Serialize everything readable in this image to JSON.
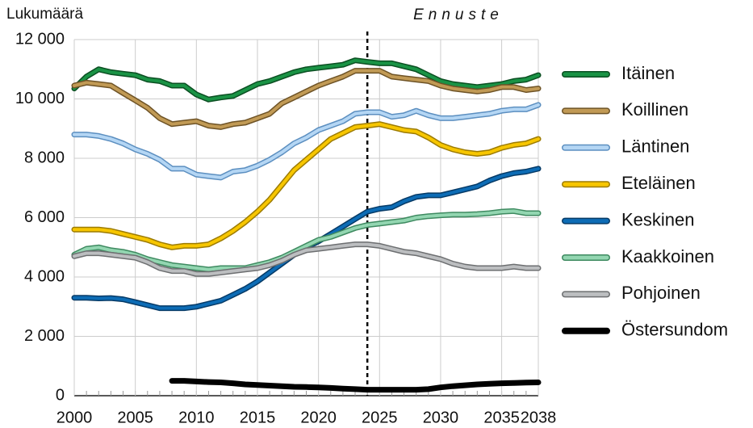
{
  "chart_data": {
    "type": "line",
    "y_label": "Lukumäärä",
    "forecast_label": "Ennuste",
    "forecast_start": 2024,
    "x": [
      2000,
      2001,
      2002,
      2003,
      2004,
      2005,
      2006,
      2007,
      2008,
      2009,
      2010,
      2011,
      2012,
      2013,
      2014,
      2015,
      2016,
      2017,
      2018,
      2019,
      2020,
      2021,
      2022,
      2023,
      2024,
      2025,
      2026,
      2027,
      2028,
      2029,
      2030,
      2031,
      2032,
      2033,
      2034,
      2035,
      2036,
      2037,
      2038
    ],
    "xlim": [
      2000,
      2038
    ],
    "xticks": [
      2000,
      2005,
      2010,
      2015,
      2020,
      2025,
      2030,
      2035,
      2038
    ],
    "ylim": [
      0,
      12000
    ],
    "yticks": [
      0,
      {
        "value": 2000,
        "label": "2 000"
      },
      {
        "value": 4000,
        "label": "4 000"
      },
      {
        "value": 6000,
        "label": "6 000"
      },
      {
        "value": 8000,
        "label": "8 000"
      },
      {
        "value": 10000,
        "label": "10 000"
      },
      {
        "value": 12000,
        "label": "12 000"
      }
    ],
    "grid": true,
    "legend": "right",
    "series": [
      {
        "name": "Itäinen",
        "color": "#1a9345",
        "outline": "#0b4f22",
        "values": [
          10350,
          10750,
          11000,
          10900,
          10850,
          10800,
          10650,
          10600,
          10450,
          10450,
          10150,
          9980,
          10050,
          10100,
          10300,
          10500,
          10600,
          10750,
          10900,
          11000,
          11050,
          11100,
          11150,
          11300,
          11250,
          11200,
          11200,
          11100,
          11000,
          10800,
          10600,
          10500,
          10450,
          10400,
          10450,
          10500,
          10600,
          10650,
          10800
        ]
      },
      {
        "name": "Koillinen",
        "color": "#c19a55",
        "outline": "#6e5326",
        "values": [
          10450,
          10550,
          10500,
          10450,
          10200,
          9950,
          9700,
          9350,
          9150,
          9200,
          9250,
          9100,
          9050,
          9150,
          9200,
          9350,
          9500,
          9850,
          10050,
          10250,
          10450,
          10600,
          10750,
          10950,
          10950,
          10950,
          10750,
          10700,
          10650,
          10600,
          10450,
          10350,
          10300,
          10250,
          10300,
          10400,
          10400,
          10300,
          10350
        ]
      },
      {
        "name": "Läntinen",
        "color": "#b4d6f4",
        "outline": "#5c8fc0",
        "values": [
          8800,
          8800,
          8750,
          8650,
          8500,
          8300,
          8150,
          7950,
          7650,
          7650,
          7450,
          7400,
          7350,
          7550,
          7600,
          7750,
          7950,
          8200,
          8500,
          8700,
          8950,
          9100,
          9250,
          9500,
          9550,
          9550,
          9400,
          9450,
          9600,
          9450,
          9350,
          9350,
          9400,
          9450,
          9500,
          9600,
          9650,
          9650,
          9800
        ]
      },
      {
        "name": "Eteläinen",
        "color": "#f7c600",
        "outline": "#9c7b00",
        "values": [
          5600,
          5600,
          5600,
          5550,
          5450,
          5350,
          5250,
          5100,
          5000,
          5050,
          5050,
          5100,
          5300,
          5550,
          5850,
          6200,
          6600,
          7100,
          7600,
          7950,
          8300,
          8650,
          8850,
          9050,
          9100,
          9150,
          9050,
          8950,
          8900,
          8700,
          8450,
          8300,
          8200,
          8150,
          8200,
          8350,
          8450,
          8500,
          8650
        ]
      },
      {
        "name": "Keskinen",
        "color": "#0d6cb5",
        "outline": "#063a66",
        "values": [
          3300,
          3300,
          3280,
          3290,
          3250,
          3150,
          3050,
          2950,
          2950,
          2950,
          3000,
          3100,
          3200,
          3400,
          3600,
          3850,
          4150,
          4450,
          4750,
          5000,
          5200,
          5450,
          5700,
          5950,
          6200,
          6300,
          6350,
          6550,
          6700,
          6750,
          6750,
          6850,
          6950,
          7050,
          7250,
          7400,
          7500,
          7550,
          7650
        ]
      },
      {
        "name": "Kaakkoinen",
        "color": "#93d6b1",
        "outline": "#3e8a60",
        "values": [
          4750,
          4950,
          5000,
          4900,
          4850,
          4750,
          4600,
          4500,
          4400,
          4350,
          4300,
          4250,
          4300,
          4300,
          4300,
          4400,
          4500,
          4650,
          4850,
          5050,
          5250,
          5350,
          5500,
          5650,
          5750,
          5800,
          5850,
          5900,
          6000,
          6050,
          6080,
          6100,
          6100,
          6120,
          6150,
          6200,
          6220,
          6150,
          6150
        ]
      },
      {
        "name": "Pohjoinen",
        "color": "#bcbec0",
        "outline": "#6d6f71",
        "values": [
          4700,
          4800,
          4800,
          4750,
          4700,
          4650,
          4500,
          4300,
          4200,
          4200,
          4100,
          4100,
          4150,
          4200,
          4250,
          4300,
          4400,
          4550,
          4750,
          4900,
          4950,
          5000,
          5050,
          5100,
          5100,
          5050,
          4950,
          4850,
          4800,
          4700,
          4600,
          4450,
          4350,
          4300,
          4300,
          4300,
          4350,
          4300,
          4300
        ]
      },
      {
        "name": "Östersundom",
        "color": "#000000",
        "outline": "#000000",
        "values": [
          null,
          null,
          null,
          null,
          null,
          null,
          null,
          null,
          500,
          500,
          480,
          460,
          450,
          420,
          380,
          360,
          340,
          320,
          300,
          290,
          280,
          260,
          240,
          220,
          200,
          200,
          200,
          200,
          200,
          220,
          280,
          320,
          350,
          380,
          400,
          420,
          430,
          440,
          450
        ]
      }
    ]
  }
}
